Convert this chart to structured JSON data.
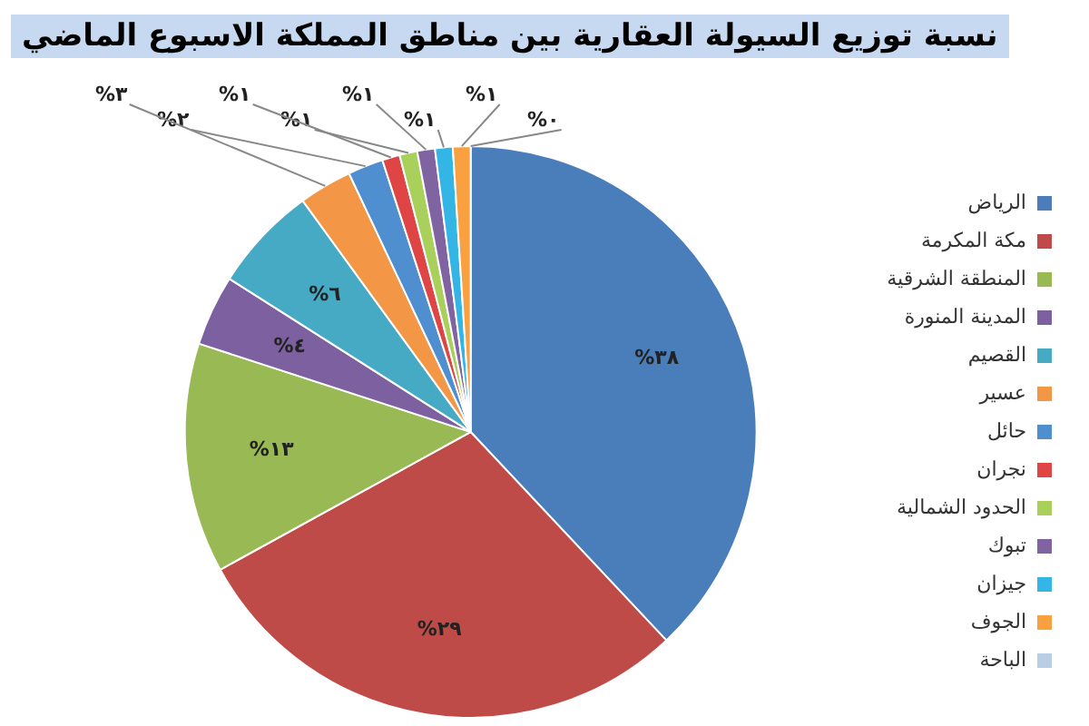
{
  "chart_data": {
    "type": "pie",
    "title": "نسبة توزيع السيولة العقارية بين مناطق المملكة الاسبوع الماضي",
    "categories": [
      "الرياض",
      "مكة المكرمة",
      "المنطقة الشرقية",
      "المدينة المنورة",
      "القصيم",
      "عسير",
      "حائل",
      "نجران",
      "الحدود الشمالية",
      "تبوك",
      "جيزان",
      "الجوف",
      "الباحة"
    ],
    "values": [
      38,
      29,
      13,
      4,
      6,
      3,
      2,
      1,
      1,
      1,
      1,
      1,
      0
    ],
    "value_labels": [
      "%٣٨",
      "%٢٩",
      "%١٣",
      "%٤",
      "%٦",
      "%٣",
      "%٢",
      "%١",
      "%١",
      "%١",
      "%١",
      "%١",
      "%٠"
    ],
    "colors": [
      "#4a7ebb",
      "#be4b48",
      "#98b954",
      "#7d60a0",
      "#46aac5",
      "#f39645",
      "#4f8fd0",
      "#e04545",
      "#a8d05a",
      "#8064a2",
      "#33b5e5",
      "#f9a040",
      "#b9cde5"
    ],
    "legend": "right"
  }
}
